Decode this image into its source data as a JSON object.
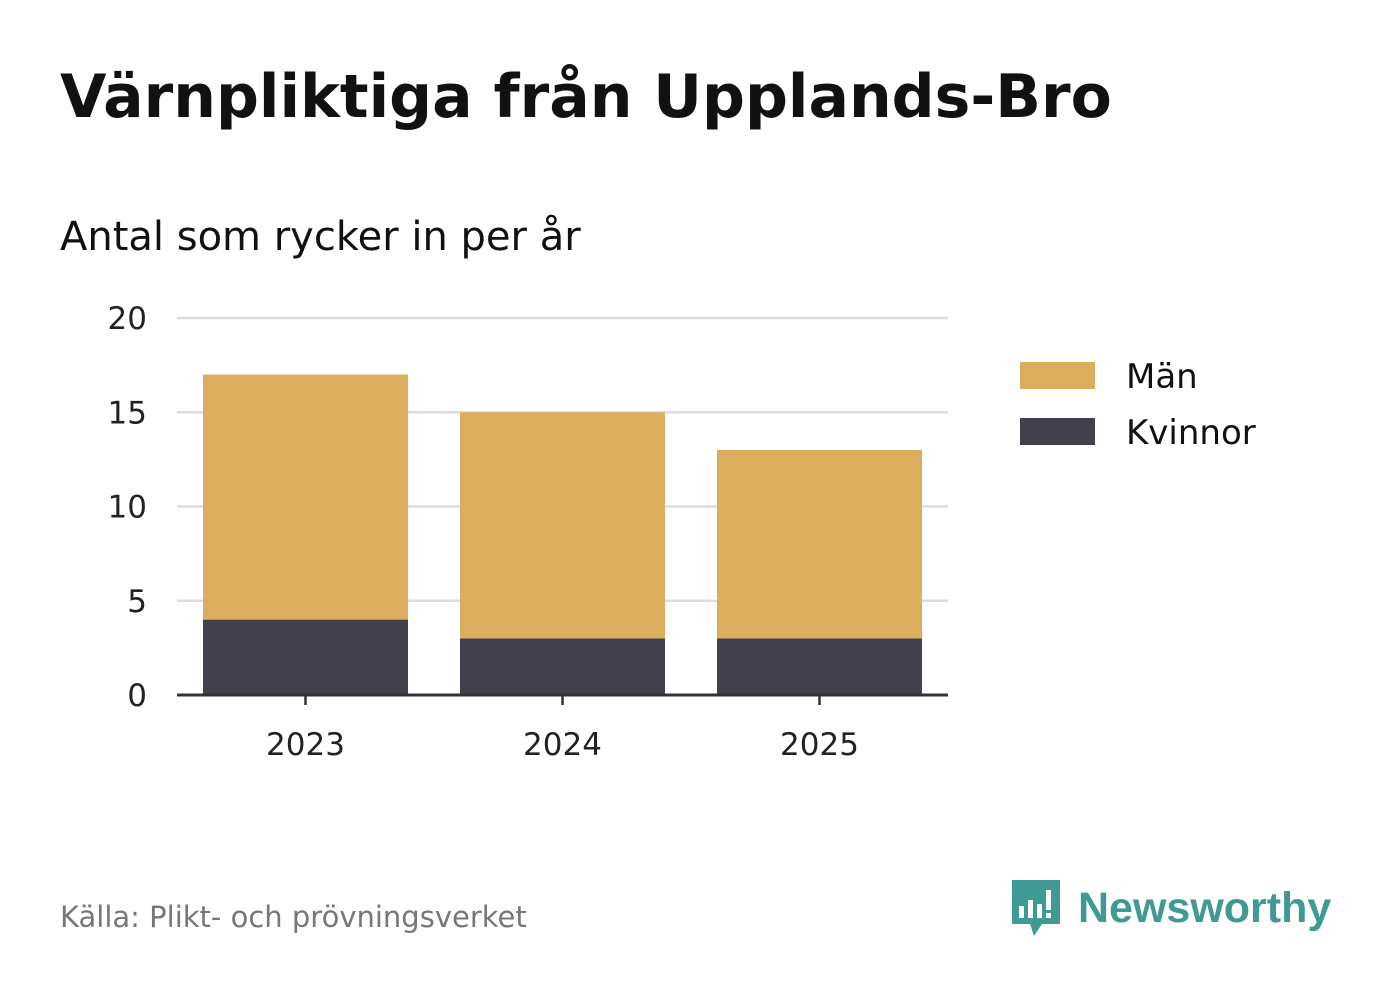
{
  "title": "Värnpliktiga från Upplands-Bro",
  "subtitle": "Antal som rycker in per år",
  "source": "Källa: Plikt- och prövningsverket",
  "brand": "Newsworthy",
  "brand_icon": "newsworthy-logo-icon",
  "colors": {
    "man": "#dbad5c",
    "kvinnor": "#43404e",
    "brand": "#3e9a92",
    "grid": "#dddddd",
    "axis": "#333333"
  },
  "chart_data": {
    "type": "bar",
    "stacked": true,
    "categories": [
      "2023",
      "2024",
      "2025"
    ],
    "series": [
      {
        "name": "Kvinnor",
        "values": [
          4,
          3,
          3
        ],
        "color": "#43404e"
      },
      {
        "name": "Män",
        "values": [
          13,
          12,
          10
        ],
        "color": "#dbad5c"
      }
    ],
    "yticks": [
      0,
      5,
      10,
      15,
      20
    ],
    "ylim": [
      0,
      20
    ],
    "grid": true,
    "legend_position": "right",
    "legend_order": [
      "Män",
      "Kvinnor"
    ],
    "xlabel": "",
    "ylabel": ""
  }
}
